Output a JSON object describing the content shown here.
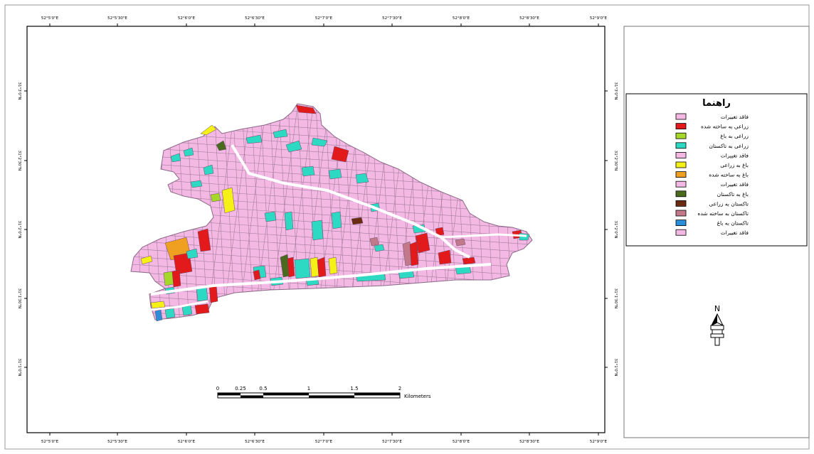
{
  "map": {
    "graticule": {
      "top_labels": [
        "52°5'0\"E",
        "52°5'30\"E",
        "52°6'0\"E",
        "52°6'30\"E",
        "52°7'0\"E",
        "52°7'30\"E",
        "52°8'0\"E",
        "52°8'30\"E",
        "52°9'0\"E"
      ],
      "bottom_labels": [
        "52°5'0\"E",
        "52°5'30\"E",
        "52°6'0\"E",
        "52°6'30\"E",
        "52°7'0\"E",
        "52°7'30\"E",
        "52°8'0\"E",
        "52°8'30\"E",
        "52°9'0\"E"
      ],
      "left_labels": [
        "31°3'0\"N",
        "31°2'30\"N",
        "31°2'0\"N",
        "31°1'30\"N",
        "31°1'0\"N"
      ],
      "right_labels": [
        "31°3'0\"N",
        "31°2'30\"N",
        "31°2'0\"N",
        "31°1'30\"N",
        "31°1'0\"N"
      ]
    },
    "colors": {
      "parcel_fill": "#f4b8e4",
      "parcel_line": "#8a6a86",
      "road": "#ffffff"
    }
  },
  "legend": {
    "title": "راهنما",
    "items": [
      {
        "label": "فاقد تغییرات",
        "color": "#f4b8e4"
      },
      {
        "label": "زراعی به ساخته شده",
        "color": "#e31a1c"
      },
      {
        "label": "زراعی به باغ",
        "color": "#a6d82a"
      },
      {
        "label": "زراعی به تاکستان",
        "color": "#2ed9c3"
      },
      {
        "label": "فاقد تغییرات",
        "color": "#f4b8e4"
      },
      {
        "label": "باغ به زراعی",
        "color": "#f5f016"
      },
      {
        "label": "باغ به ساخته شده",
        "color": "#f0a020"
      },
      {
        "label": "فاقد تغییرات",
        "color": "#f4b8e4"
      },
      {
        "label": "باغ به تاکستان",
        "color": "#4a6b1e"
      },
      {
        "label": "تاکستان به زراعی",
        "color": "#6b2b10"
      },
      {
        "label": "تاکستان به ساخته شده",
        "color": "#c27a8a"
      },
      {
        "label": "تاکستان به باغ",
        "color": "#2a8fd8"
      },
      {
        "label": "فاقد تغییرات",
        "color": "#f4b8e4"
      }
    ]
  },
  "scale_bar": {
    "ticks": [
      "0",
      "0.25",
      "0.5",
      "1",
      "1.5",
      "2"
    ],
    "unit": "Kilometers"
  },
  "north_arrow": {
    "label": "N"
  }
}
